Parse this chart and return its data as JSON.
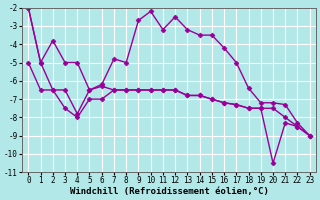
{
  "xlabel": "Windchill (Refroidissement éolien,°C)",
  "background_color": "#b2e8e8",
  "line_color": "#990099",
  "grid_color": "#ffffff",
  "series1_x": [
    0,
    1,
    2,
    3,
    4,
    5,
    6,
    7,
    8,
    9,
    10,
    11,
    12,
    13,
    14,
    15,
    16,
    17,
    18,
    19,
    20,
    21,
    22,
    23
  ],
  "series1_y": [
    -2.0,
    -5.0,
    -3.8,
    -5.0,
    -5.0,
    -6.5,
    -6.2,
    -4.8,
    -5.0,
    -2.7,
    -2.2,
    -3.2,
    -2.5,
    -3.2,
    -3.5,
    -3.5,
    -4.2,
    -5.0,
    -6.4,
    -7.2,
    -7.2,
    -7.3,
    -8.3,
    -9.0
  ],
  "series2_x": [
    0,
    1,
    2,
    3,
    4,
    5,
    6,
    7,
    8,
    9,
    10,
    11,
    12,
    13,
    14,
    15,
    16,
    17,
    18,
    19,
    20,
    21,
    22,
    23
  ],
  "series2_y": [
    -5.0,
    -6.5,
    -6.5,
    -6.5,
    -7.8,
    -6.5,
    -6.3,
    -6.5,
    -6.5,
    -6.5,
    -6.5,
    -6.5,
    -6.5,
    -6.8,
    -6.8,
    -7.0,
    -7.2,
    -7.3,
    -7.5,
    -7.5,
    -7.5,
    -8.0,
    -8.5,
    -9.0
  ],
  "series3_x": [
    0,
    1,
    2,
    3,
    4,
    5,
    6,
    7,
    8,
    9,
    10,
    11,
    12,
    13,
    14,
    15,
    16,
    17,
    18,
    19,
    20,
    21,
    22,
    23
  ],
  "series3_y": [
    -2.0,
    -5.0,
    -6.5,
    -7.5,
    -8.0,
    -7.0,
    -7.0,
    -6.5,
    -6.5,
    -6.5,
    -6.5,
    -6.5,
    -6.5,
    -6.8,
    -6.8,
    -7.0,
    -7.2,
    -7.3,
    -7.5,
    -7.5,
    -10.5,
    -8.3,
    -8.5,
    -9.0
  ],
  "xlim": [
    0,
    23
  ],
  "ylim": [
    -11,
    -2
  ],
  "yticks": [
    -11,
    -10,
    -9,
    -8,
    -7,
    -6,
    -5,
    -4,
    -3,
    -2
  ],
  "xticks": [
    0,
    1,
    2,
    3,
    4,
    5,
    6,
    7,
    8,
    9,
    10,
    11,
    12,
    13,
    14,
    15,
    16,
    17,
    18,
    19,
    20,
    21,
    22,
    23
  ],
  "marker": "D",
  "markersize": 2.5,
  "linewidth": 1.0,
  "tick_fontsize": 5.5,
  "xlabel_fontsize": 6.5
}
